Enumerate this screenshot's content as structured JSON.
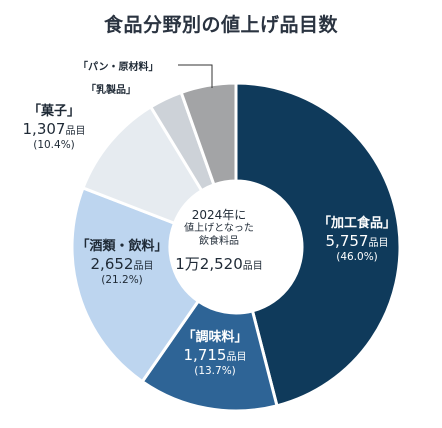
{
  "title": "食品分野別の値上げ品目数",
  "center": {
    "line1": "2024年に",
    "line2": "値上げとなった",
    "line3": "飲食料品",
    "total_num": "1万2,520",
    "total_unit": "品目"
  },
  "chart_data": {
    "type": "pie",
    "title": "食品分野別の値上げ品目数",
    "unit": "品目",
    "categories": [
      "「加工食品」",
      "「調味料」",
      "「酒類・飲料」",
      "「菓子」",
      "「乳製品」",
      "「パン・原材料」"
    ],
    "values": [
      5757,
      1715,
      2652,
      1307,
      410,
      679
    ],
    "percent": [
      46.0,
      13.7,
      21.2,
      10.4,
      3.3,
      5.4
    ],
    "colors": [
      "#0f3a5b",
      "#2e6496",
      "#bdd5ef",
      "#e6ebf0",
      "#cdd2d8",
      "#a3a4a6"
    ],
    "labels": [
      {
        "name": "「加工食品」",
        "value": "5,757",
        "unit": "品目",
        "pct": "(46.0%)"
      },
      {
        "name": "「調味料」",
        "value": "1,715",
        "unit": "品目",
        "pct": "(13.7%)"
      },
      {
        "name": "「酒類・飲料」",
        "value": "2,652",
        "unit": "品目",
        "pct": "(21.2%)"
      },
      {
        "name": "「菓子」",
        "value": "1,307",
        "unit": "品目",
        "pct": "(10.4%)"
      },
      {
        "name": "「乳製品」"
      },
      {
        "name": "「パン・原材料」"
      }
    ]
  }
}
